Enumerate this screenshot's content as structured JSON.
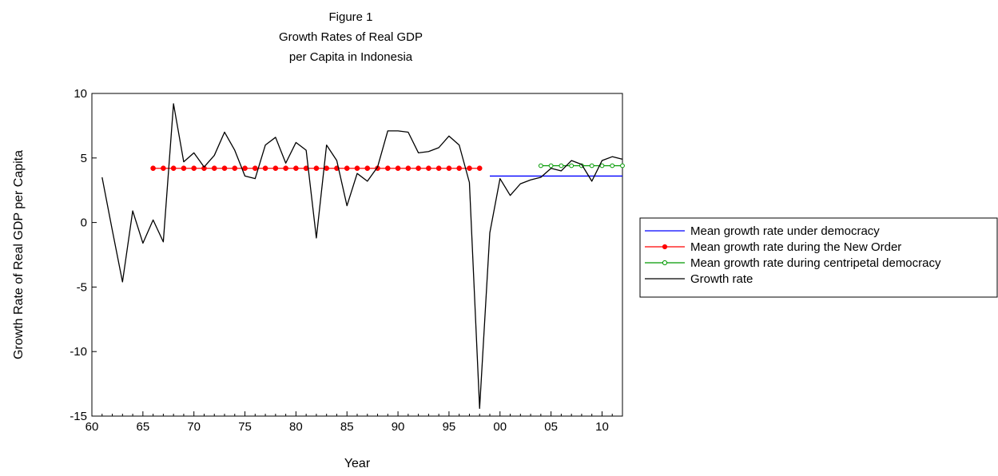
{
  "chart_data": {
    "type": "line",
    "title_lines": [
      "Figure 1",
      "Growth Rates of Real GDP",
      "per Capita in Indonesia"
    ],
    "xlabel": "Year",
    "ylabel": "Growth Rate of Real GDP per Capita",
    "xlim": [
      1960,
      2012
    ],
    "ylim": [
      -15,
      10
    ],
    "x_ticks": [
      {
        "value": 1960,
        "label": "60"
      },
      {
        "value": 1965,
        "label": "65"
      },
      {
        "value": 1970,
        "label": "70"
      },
      {
        "value": 1975,
        "label": "75"
      },
      {
        "value": 1980,
        "label": "80"
      },
      {
        "value": 1985,
        "label": "85"
      },
      {
        "value": 1990,
        "label": "90"
      },
      {
        "value": 1995,
        "label": "95"
      },
      {
        "value": 2000,
        "label": "00"
      },
      {
        "value": 2005,
        "label": "05"
      },
      {
        "value": 2010,
        "label": "10"
      }
    ],
    "y_ticks": [
      {
        "value": 10,
        "label": "10"
      },
      {
        "value": 5,
        "label": "5"
      },
      {
        "value": 0,
        "label": "0"
      },
      {
        "value": -5,
        "label": "-5"
      },
      {
        "value": -10,
        "label": "-10"
      },
      {
        "value": -15,
        "label": "-15"
      }
    ],
    "grid": false,
    "legend_position": "right",
    "series": [
      {
        "name": "Mean growth rate under democracy",
        "color": "#0000ff",
        "marker": "none",
        "x": [
          1999,
          2012
        ],
        "y": [
          3.6,
          3.6
        ]
      },
      {
        "name": "Mean growth rate during the New Order",
        "color": "#ff0000",
        "marker": "filled-circle",
        "x": [
          1966,
          1967,
          1968,
          1969,
          1970,
          1971,
          1972,
          1973,
          1974,
          1975,
          1976,
          1977,
          1978,
          1979,
          1980,
          1981,
          1982,
          1983,
          1984,
          1985,
          1986,
          1987,
          1988,
          1989,
          1990,
          1991,
          1992,
          1993,
          1994,
          1995,
          1996,
          1997,
          1998
        ],
        "y": [
          4.2,
          4.2,
          4.2,
          4.2,
          4.2,
          4.2,
          4.2,
          4.2,
          4.2,
          4.2,
          4.2,
          4.2,
          4.2,
          4.2,
          4.2,
          4.2,
          4.2,
          4.2,
          4.2,
          4.2,
          4.2,
          4.2,
          4.2,
          4.2,
          4.2,
          4.2,
          4.2,
          4.2,
          4.2,
          4.2,
          4.2,
          4.2,
          4.2
        ]
      },
      {
        "name": "Mean growth rate during centripetal democracy",
        "color": "#009900",
        "marker": "open-circle",
        "x": [
          2004,
          2005,
          2006,
          2007,
          2008,
          2009,
          2010,
          2011,
          2012
        ],
        "y": [
          4.4,
          4.4,
          4.4,
          4.4,
          4.4,
          4.4,
          4.4,
          4.4,
          4.4
        ]
      },
      {
        "name": "Growth rate",
        "color": "#000000",
        "marker": "none",
        "x": [
          1961,
          1962,
          1963,
          1964,
          1965,
          1966,
          1967,
          1968,
          1969,
          1970,
          1971,
          1972,
          1973,
          1974,
          1975,
          1976,
          1977,
          1978,
          1979,
          1980,
          1981,
          1982,
          1983,
          1984,
          1985,
          1986,
          1987,
          1988,
          1989,
          1990,
          1991,
          1992,
          1993,
          1994,
          1995,
          1996,
          1997,
          1998,
          1999,
          2000,
          2001,
          2002,
          2003,
          2004,
          2005,
          2006,
          2007,
          2008,
          2009,
          2010,
          2011,
          2012
        ],
        "y": [
          3.5,
          -0.6,
          -4.6,
          0.9,
          -1.6,
          0.2,
          -1.5,
          9.2,
          4.7,
          5.4,
          4.3,
          5.2,
          7.0,
          5.6,
          3.6,
          3.4,
          6.0,
          6.6,
          4.6,
          6.2,
          5.6,
          -1.2,
          6.0,
          4.8,
          1.3,
          3.8,
          3.2,
          4.3,
          7.1,
          7.1,
          7.0,
          5.4,
          5.5,
          5.8,
          6.7,
          6.0,
          3.1,
          -14.4,
          -0.8,
          3.4,
          2.1,
          3.0,
          3.3,
          3.5,
          4.2,
          4.0,
          4.8,
          4.5,
          3.2,
          4.8,
          5.1,
          4.9
        ]
      }
    ]
  }
}
